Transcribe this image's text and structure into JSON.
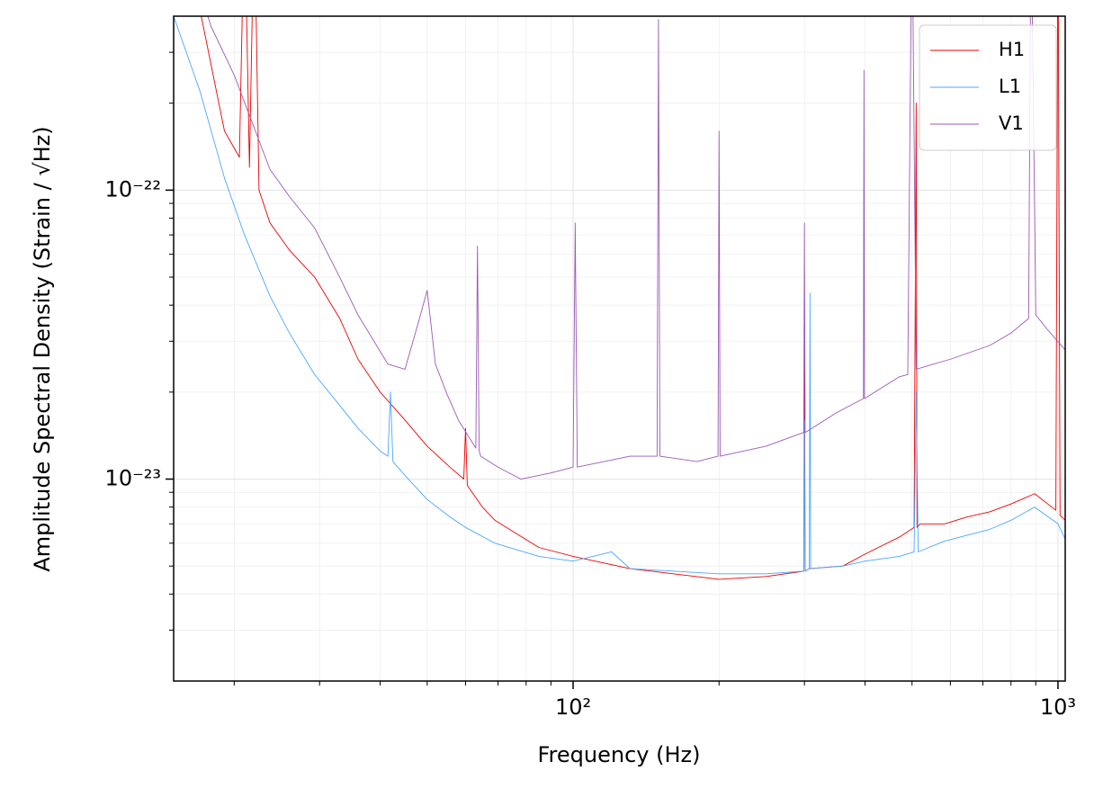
{
  "chart_data": {
    "type": "line",
    "xlabel": "Frequency (Hz)",
    "ylabel": "Amplitude Spectral Density (Strain / √Hz)",
    "xscale": "log",
    "yscale": "log",
    "grid": true,
    "legend": "upper right",
    "xlim": [
      15,
      1035
    ],
    "ylim": [
      2e-24,
      4e-22
    ],
    "xticks": [
      {
        "value": 100,
        "label": "10²"
      },
      {
        "value": 1000,
        "label": "10³"
      }
    ],
    "yticks": [
      {
        "value": 1e-23,
        "label": "10⁻²³"
      },
      {
        "value": 1e-22,
        "label": "10⁻²²"
      }
    ],
    "xminorticks": [
      20,
      30,
      40,
      50,
      60,
      70,
      80,
      90,
      200,
      300,
      400,
      500,
      600,
      700,
      800,
      900
    ],
    "yminorticks": [
      3e-24,
      4e-24,
      5e-24,
      6e-24,
      7e-24,
      8e-24,
      9e-24,
      2e-23,
      3e-23,
      4e-23,
      5e-23,
      6e-23,
      7e-23,
      8e-23,
      9e-23,
      2e-22,
      3e-22
    ],
    "series": [
      {
        "name": "H1",
        "color": "#ee0000",
        "x": [
          15,
          17,
          19.1,
          20.5,
          21,
          21.5,
          22,
          22.5,
          23.7,
          26,
          29.3,
          33,
          36,
          40,
          45,
          50,
          55.7,
          59.5,
          60,
          60.5,
          65,
          69,
          75,
          85,
          100,
          131,
          200,
          250,
          299,
          300,
          301,
          307,
          360,
          400,
          471,
          505,
          510,
          512,
          520,
          584,
          650,
          723,
          800,
          895,
          990,
          1000,
          1010,
          1035
        ],
        "values": [
          6e-22,
          4.2e-22,
          1.6e-22,
          1.3e-22,
          1e-21,
          1.2e-22,
          1e-21,
          1e-22,
          7.7e-23,
          6.2e-23,
          5e-23,
          3.6e-23,
          2.6e-23,
          2e-23,
          1.6e-23,
          1.3e-23,
          1.1e-23,
          1e-23,
          1.5e-23,
          9.5e-24,
          8e-24,
          7.2e-24,
          6.6e-24,
          5.8e-24,
          5.4e-24,
          4.9e-24,
          4.5e-24,
          4.6e-24,
          4.8e-24,
          3e-23,
          4.8e-24,
          4.9e-24,
          5e-24,
          5.5e-24,
          6.3e-24,
          6.8e-24,
          2e-22,
          6.8e-24,
          7e-24,
          7e-24,
          7.4e-24,
          7.7e-24,
          8.2e-24,
          8.9e-24,
          7.8e-24,
          1e-21,
          7.5e-24,
          7.2e-24
        ]
      },
      {
        "name": "L1",
        "color": "#4ba6ff",
        "x": [
          15,
          17,
          19.1,
          21,
          23.7,
          26,
          29.3,
          33,
          36,
          40,
          41.5,
          42,
          42.5,
          45,
          50,
          55.7,
          60,
          69,
          85,
          100,
          120,
          131,
          200,
          250,
          299,
          300,
          301,
          307,
          308,
          309,
          360,
          400,
          471,
          505,
          510,
          515,
          584,
          723,
          800,
          895,
          1000,
          1035
        ],
        "values": [
          4e-22,
          2.2e-22,
          1.1e-22,
          7e-23,
          4.3e-23,
          3.2e-23,
          2.3e-23,
          1.8e-23,
          1.5e-23,
          1.25e-23,
          1.2e-23,
          2e-23,
          1.15e-23,
          1.03e-23,
          8.5e-24,
          7.4e-24,
          6.8e-24,
          6e-24,
          5.4e-24,
          5.2e-24,
          5.6e-24,
          4.9e-24,
          4.7e-24,
          4.7e-24,
          4.8e-24,
          1.6e-23,
          4.8e-24,
          4.9e-24,
          4.4e-23,
          4.9e-24,
          5e-24,
          5.2e-24,
          5.4e-24,
          5.6e-24,
          2e-23,
          5.6e-24,
          6.1e-24,
          6.7e-24,
          7.2e-24,
          8e-24,
          7e-24,
          6.2e-24
        ]
      },
      {
        "name": "V1",
        "color": "#9b59b6",
        "x": [
          15,
          17.9,
          20,
          23.7,
          26,
          29.3,
          33,
          36,
          41.5,
          45,
          48,
          50,
          52,
          55,
          58,
          63,
          63.5,
          64,
          64.5,
          70,
          78,
          90,
          100,
          101,
          102,
          131,
          149,
          150,
          151,
          180,
          199,
          200,
          201,
          250,
          299,
          300,
          301,
          307,
          350,
          397,
          398,
          399,
          471,
          490,
          500,
          510,
          600,
          723,
          800,
          870,
          880,
          900,
          950,
          1035
        ],
        "values": [
          1e-21,
          3.7e-22,
          2.5e-22,
          1.18e-22,
          9.5e-23,
          7.4e-23,
          5e-23,
          3.7e-23,
          2.5e-23,
          2.4e-23,
          3.5e-23,
          4.5e-23,
          2.5e-23,
          1.96e-23,
          1.6e-23,
          1.28e-23,
          6.4e-23,
          1.25e-23,
          1.2e-23,
          1.1e-23,
          1e-23,
          1.05e-23,
          1.1e-23,
          7.7e-23,
          1.1e-23,
          1.2e-23,
          1.2e-23,
          3.9e-22,
          1.2e-23,
          1.15e-23,
          1.2e-23,
          1.6e-22,
          1.2e-23,
          1.3e-23,
          1.45e-23,
          7.7e-23,
          1.45e-23,
          1.48e-23,
          1.7e-23,
          1.9e-23,
          2.6e-22,
          1.9e-23,
          2.26e-23,
          2.3e-23,
          1e-21,
          2.4e-23,
          2.6e-23,
          2.9e-23,
          3.2e-23,
          3.6e-23,
          1e-21,
          3.7e-23,
          3.3e-23,
          2.8e-23
        ]
      }
    ]
  }
}
